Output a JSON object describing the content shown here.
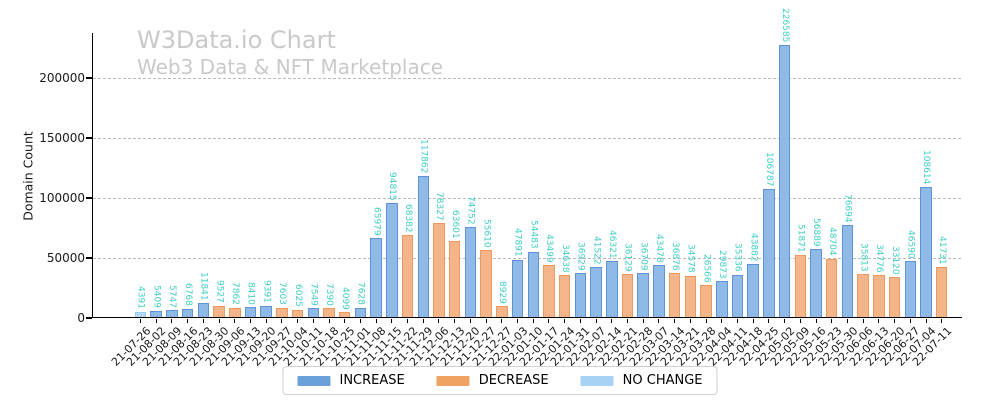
{
  "header": {
    "title": "W3Data.io Chart",
    "subtitle": "Web3 Data & NFT Marketplace"
  },
  "chart_data": {
    "type": "bar",
    "title": "W3Data.io Chart",
    "subtitle": "Web3 Data & NFT Marketplace",
    "xlabel": "",
    "ylabel": "Domain Count",
    "ylim": [
      0,
      237500
    ],
    "yticks": [
      0,
      50000,
      100000,
      150000,
      200000
    ],
    "grid": "horizontal dashed gray lines",
    "legend_position": "bottom center, horizontal",
    "value_label_style": "rotated vertical, turquoise, above each bar",
    "colors": {
      "increase": {
        "fill": "#8FBAE8",
        "edge": "#5E94D3",
        "legend": "#6BA1D9"
      },
      "decrease": {
        "fill": "#F4B58A",
        "edge": "#EC9A5F",
        "legend": "#F0A262"
      },
      "no_change": {
        "fill": "#B5D8F4",
        "edge": "#9CC9EF",
        "legend": "#A8D2F3"
      },
      "value_label": "#3FCEC4",
      "title_gray": "#C9C9C9"
    },
    "legend": [
      {
        "key": "increase",
        "label": "INCREASE"
      },
      {
        "key": "decrease",
        "label": "DECREASE"
      },
      {
        "key": "no_change",
        "label": "NO CHANGE"
      }
    ],
    "bars": [
      {
        "date": "21-07-26",
        "value": 4391,
        "change": "no_change"
      },
      {
        "date": "21-08-02",
        "value": 5409,
        "change": "increase"
      },
      {
        "date": "21-08-09",
        "value": 5747,
        "change": "increase"
      },
      {
        "date": "21-08-16",
        "value": 6768,
        "change": "increase"
      },
      {
        "date": "21-08-23",
        "value": 11841,
        "change": "increase"
      },
      {
        "date": "21-08-30",
        "value": 9527,
        "change": "decrease"
      },
      {
        "date": "21-09-06",
        "value": 7862,
        "change": "decrease"
      },
      {
        "date": "21-09-13",
        "value": 8410,
        "change": "increase"
      },
      {
        "date": "21-09-20",
        "value": 9391,
        "change": "increase"
      },
      {
        "date": "21-09-27",
        "value": 7603,
        "change": "decrease"
      },
      {
        "date": "21-10-04",
        "value": 6025,
        "change": "decrease"
      },
      {
        "date": "21-10-11",
        "value": 7549,
        "change": "increase"
      },
      {
        "date": "21-10-18",
        "value": 7390,
        "change": "decrease"
      },
      {
        "date": "21-10-25",
        "value": 4099,
        "change": "decrease"
      },
      {
        "date": "21-11-01",
        "value": 7628,
        "change": "increase"
      },
      {
        "date": "21-11-08",
        "value": 65979,
        "change": "increase"
      },
      {
        "date": "21-11-15",
        "value": 94815,
        "change": "increase"
      },
      {
        "date": "21-11-22",
        "value": 68382,
        "change": "decrease"
      },
      {
        "date": "21-11-29",
        "value": 117862,
        "change": "increase"
      },
      {
        "date": "21-12-06",
        "value": 78327,
        "change": "decrease"
      },
      {
        "date": "21-12-13",
        "value": 63601,
        "change": "decrease"
      },
      {
        "date": "21-12-20",
        "value": 74752,
        "change": "increase"
      },
      {
        "date": "21-12-27",
        "value": 55610,
        "change": "decrease"
      },
      {
        "date": "21-12-27",
        "value": 8929,
        "change": "decrease"
      },
      {
        "date": "22-01-03",
        "value": 47891,
        "change": "increase"
      },
      {
        "date": "22-01-10",
        "value": 54483,
        "change": "increase"
      },
      {
        "date": "22-01-17",
        "value": 43499,
        "change": "decrease"
      },
      {
        "date": "22-01-24",
        "value": 34638,
        "change": "decrease"
      },
      {
        "date": "22-01-31",
        "value": 36929,
        "change": "increase"
      },
      {
        "date": "22-02-07",
        "value": 41522,
        "change": "increase"
      },
      {
        "date": "22-02-14",
        "value": 46321,
        "change": "increase"
      },
      {
        "date": "22-02-21",
        "value": 36129,
        "change": "decrease"
      },
      {
        "date": "22-02-28",
        "value": 36709,
        "change": "increase"
      },
      {
        "date": "22-03-07",
        "value": 43478,
        "change": "increase"
      },
      {
        "date": "22-03-14",
        "value": 36876,
        "change": "decrease"
      },
      {
        "date": "22-03-21",
        "value": 34578,
        "change": "decrease"
      },
      {
        "date": "22-03-28",
        "value": 26566,
        "change": "decrease"
      },
      {
        "date": "22-04-04",
        "value": 29873,
        "change": "increase"
      },
      {
        "date": "22-04-11",
        "value": 35336,
        "change": "increase"
      },
      {
        "date": "22-04-18",
        "value": 43882,
        "change": "increase"
      },
      {
        "date": "22-04-25",
        "value": 106787,
        "change": "increase"
      },
      {
        "date": "22-05-02",
        "value": 226585,
        "change": "increase"
      },
      {
        "date": "22-05-09",
        "value": 51871,
        "change": "decrease"
      },
      {
        "date": "22-05-16",
        "value": 56889,
        "change": "increase"
      },
      {
        "date": "22-05-23",
        "value": 48704,
        "change": "decrease"
      },
      {
        "date": "22-05-30",
        "value": 76694,
        "change": "increase"
      },
      {
        "date": "22-06-06",
        "value": 35813,
        "change": "decrease"
      },
      {
        "date": "22-06-13",
        "value": 34776,
        "change": "decrease"
      },
      {
        "date": "22-06-20",
        "value": 33120,
        "change": "decrease"
      },
      {
        "date": "22-06-27",
        "value": 46590,
        "change": "increase"
      },
      {
        "date": "22-07-04",
        "value": 108614,
        "change": "increase"
      },
      {
        "date": "22-07-11",
        "value": 41731,
        "change": "decrease"
      }
    ]
  }
}
